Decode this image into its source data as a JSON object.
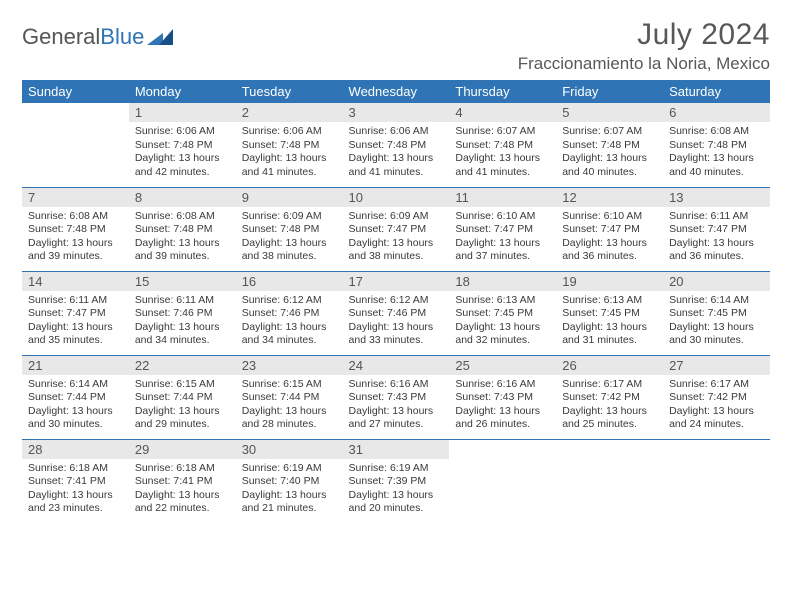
{
  "brand": {
    "part1": "General",
    "part2": "Blue"
  },
  "title": "July 2024",
  "location": "Fraccionamiento la Noria, Mexico",
  "colors": {
    "accent": "#2f74b5",
    "header_text": "#ffffff",
    "daynum_bg": "#e8e8e8",
    "body_text": "#3a3a3a",
    "title_text": "#585858"
  },
  "days_of_week": [
    "Sunday",
    "Monday",
    "Tuesday",
    "Wednesday",
    "Thursday",
    "Friday",
    "Saturday"
  ],
  "first_weekday_offset": 1,
  "days": [
    {
      "n": 1,
      "sunrise": "6:06 AM",
      "sunset": "7:48 PM",
      "daylight": "13 hours and 42 minutes."
    },
    {
      "n": 2,
      "sunrise": "6:06 AM",
      "sunset": "7:48 PM",
      "daylight": "13 hours and 41 minutes."
    },
    {
      "n": 3,
      "sunrise": "6:06 AM",
      "sunset": "7:48 PM",
      "daylight": "13 hours and 41 minutes."
    },
    {
      "n": 4,
      "sunrise": "6:07 AM",
      "sunset": "7:48 PM",
      "daylight": "13 hours and 41 minutes."
    },
    {
      "n": 5,
      "sunrise": "6:07 AM",
      "sunset": "7:48 PM",
      "daylight": "13 hours and 40 minutes."
    },
    {
      "n": 6,
      "sunrise": "6:08 AM",
      "sunset": "7:48 PM",
      "daylight": "13 hours and 40 minutes."
    },
    {
      "n": 7,
      "sunrise": "6:08 AM",
      "sunset": "7:48 PM",
      "daylight": "13 hours and 39 minutes."
    },
    {
      "n": 8,
      "sunrise": "6:08 AM",
      "sunset": "7:48 PM",
      "daylight": "13 hours and 39 minutes."
    },
    {
      "n": 9,
      "sunrise": "6:09 AM",
      "sunset": "7:48 PM",
      "daylight": "13 hours and 38 minutes."
    },
    {
      "n": 10,
      "sunrise": "6:09 AM",
      "sunset": "7:47 PM",
      "daylight": "13 hours and 38 minutes."
    },
    {
      "n": 11,
      "sunrise": "6:10 AM",
      "sunset": "7:47 PM",
      "daylight": "13 hours and 37 minutes."
    },
    {
      "n": 12,
      "sunrise": "6:10 AM",
      "sunset": "7:47 PM",
      "daylight": "13 hours and 36 minutes."
    },
    {
      "n": 13,
      "sunrise": "6:11 AM",
      "sunset": "7:47 PM",
      "daylight": "13 hours and 36 minutes."
    },
    {
      "n": 14,
      "sunrise": "6:11 AM",
      "sunset": "7:47 PM",
      "daylight": "13 hours and 35 minutes."
    },
    {
      "n": 15,
      "sunrise": "6:11 AM",
      "sunset": "7:46 PM",
      "daylight": "13 hours and 34 minutes."
    },
    {
      "n": 16,
      "sunrise": "6:12 AM",
      "sunset": "7:46 PM",
      "daylight": "13 hours and 34 minutes."
    },
    {
      "n": 17,
      "sunrise": "6:12 AM",
      "sunset": "7:46 PM",
      "daylight": "13 hours and 33 minutes."
    },
    {
      "n": 18,
      "sunrise": "6:13 AM",
      "sunset": "7:45 PM",
      "daylight": "13 hours and 32 minutes."
    },
    {
      "n": 19,
      "sunrise": "6:13 AM",
      "sunset": "7:45 PM",
      "daylight": "13 hours and 31 minutes."
    },
    {
      "n": 20,
      "sunrise": "6:14 AM",
      "sunset": "7:45 PM",
      "daylight": "13 hours and 30 minutes."
    },
    {
      "n": 21,
      "sunrise": "6:14 AM",
      "sunset": "7:44 PM",
      "daylight": "13 hours and 30 minutes."
    },
    {
      "n": 22,
      "sunrise": "6:15 AM",
      "sunset": "7:44 PM",
      "daylight": "13 hours and 29 minutes."
    },
    {
      "n": 23,
      "sunrise": "6:15 AM",
      "sunset": "7:44 PM",
      "daylight": "13 hours and 28 minutes."
    },
    {
      "n": 24,
      "sunrise": "6:16 AM",
      "sunset": "7:43 PM",
      "daylight": "13 hours and 27 minutes."
    },
    {
      "n": 25,
      "sunrise": "6:16 AM",
      "sunset": "7:43 PM",
      "daylight": "13 hours and 26 minutes."
    },
    {
      "n": 26,
      "sunrise": "6:17 AM",
      "sunset": "7:42 PM",
      "daylight": "13 hours and 25 minutes."
    },
    {
      "n": 27,
      "sunrise": "6:17 AM",
      "sunset": "7:42 PM",
      "daylight": "13 hours and 24 minutes."
    },
    {
      "n": 28,
      "sunrise": "6:18 AM",
      "sunset": "7:41 PM",
      "daylight": "13 hours and 23 minutes."
    },
    {
      "n": 29,
      "sunrise": "6:18 AM",
      "sunset": "7:41 PM",
      "daylight": "13 hours and 22 minutes."
    },
    {
      "n": 30,
      "sunrise": "6:19 AM",
      "sunset": "7:40 PM",
      "daylight": "13 hours and 21 minutes."
    },
    {
      "n": 31,
      "sunrise": "6:19 AM",
      "sunset": "7:39 PM",
      "daylight": "13 hours and 20 minutes."
    }
  ],
  "labels": {
    "sunrise": "Sunrise:",
    "sunset": "Sunset:",
    "daylight": "Daylight:"
  }
}
